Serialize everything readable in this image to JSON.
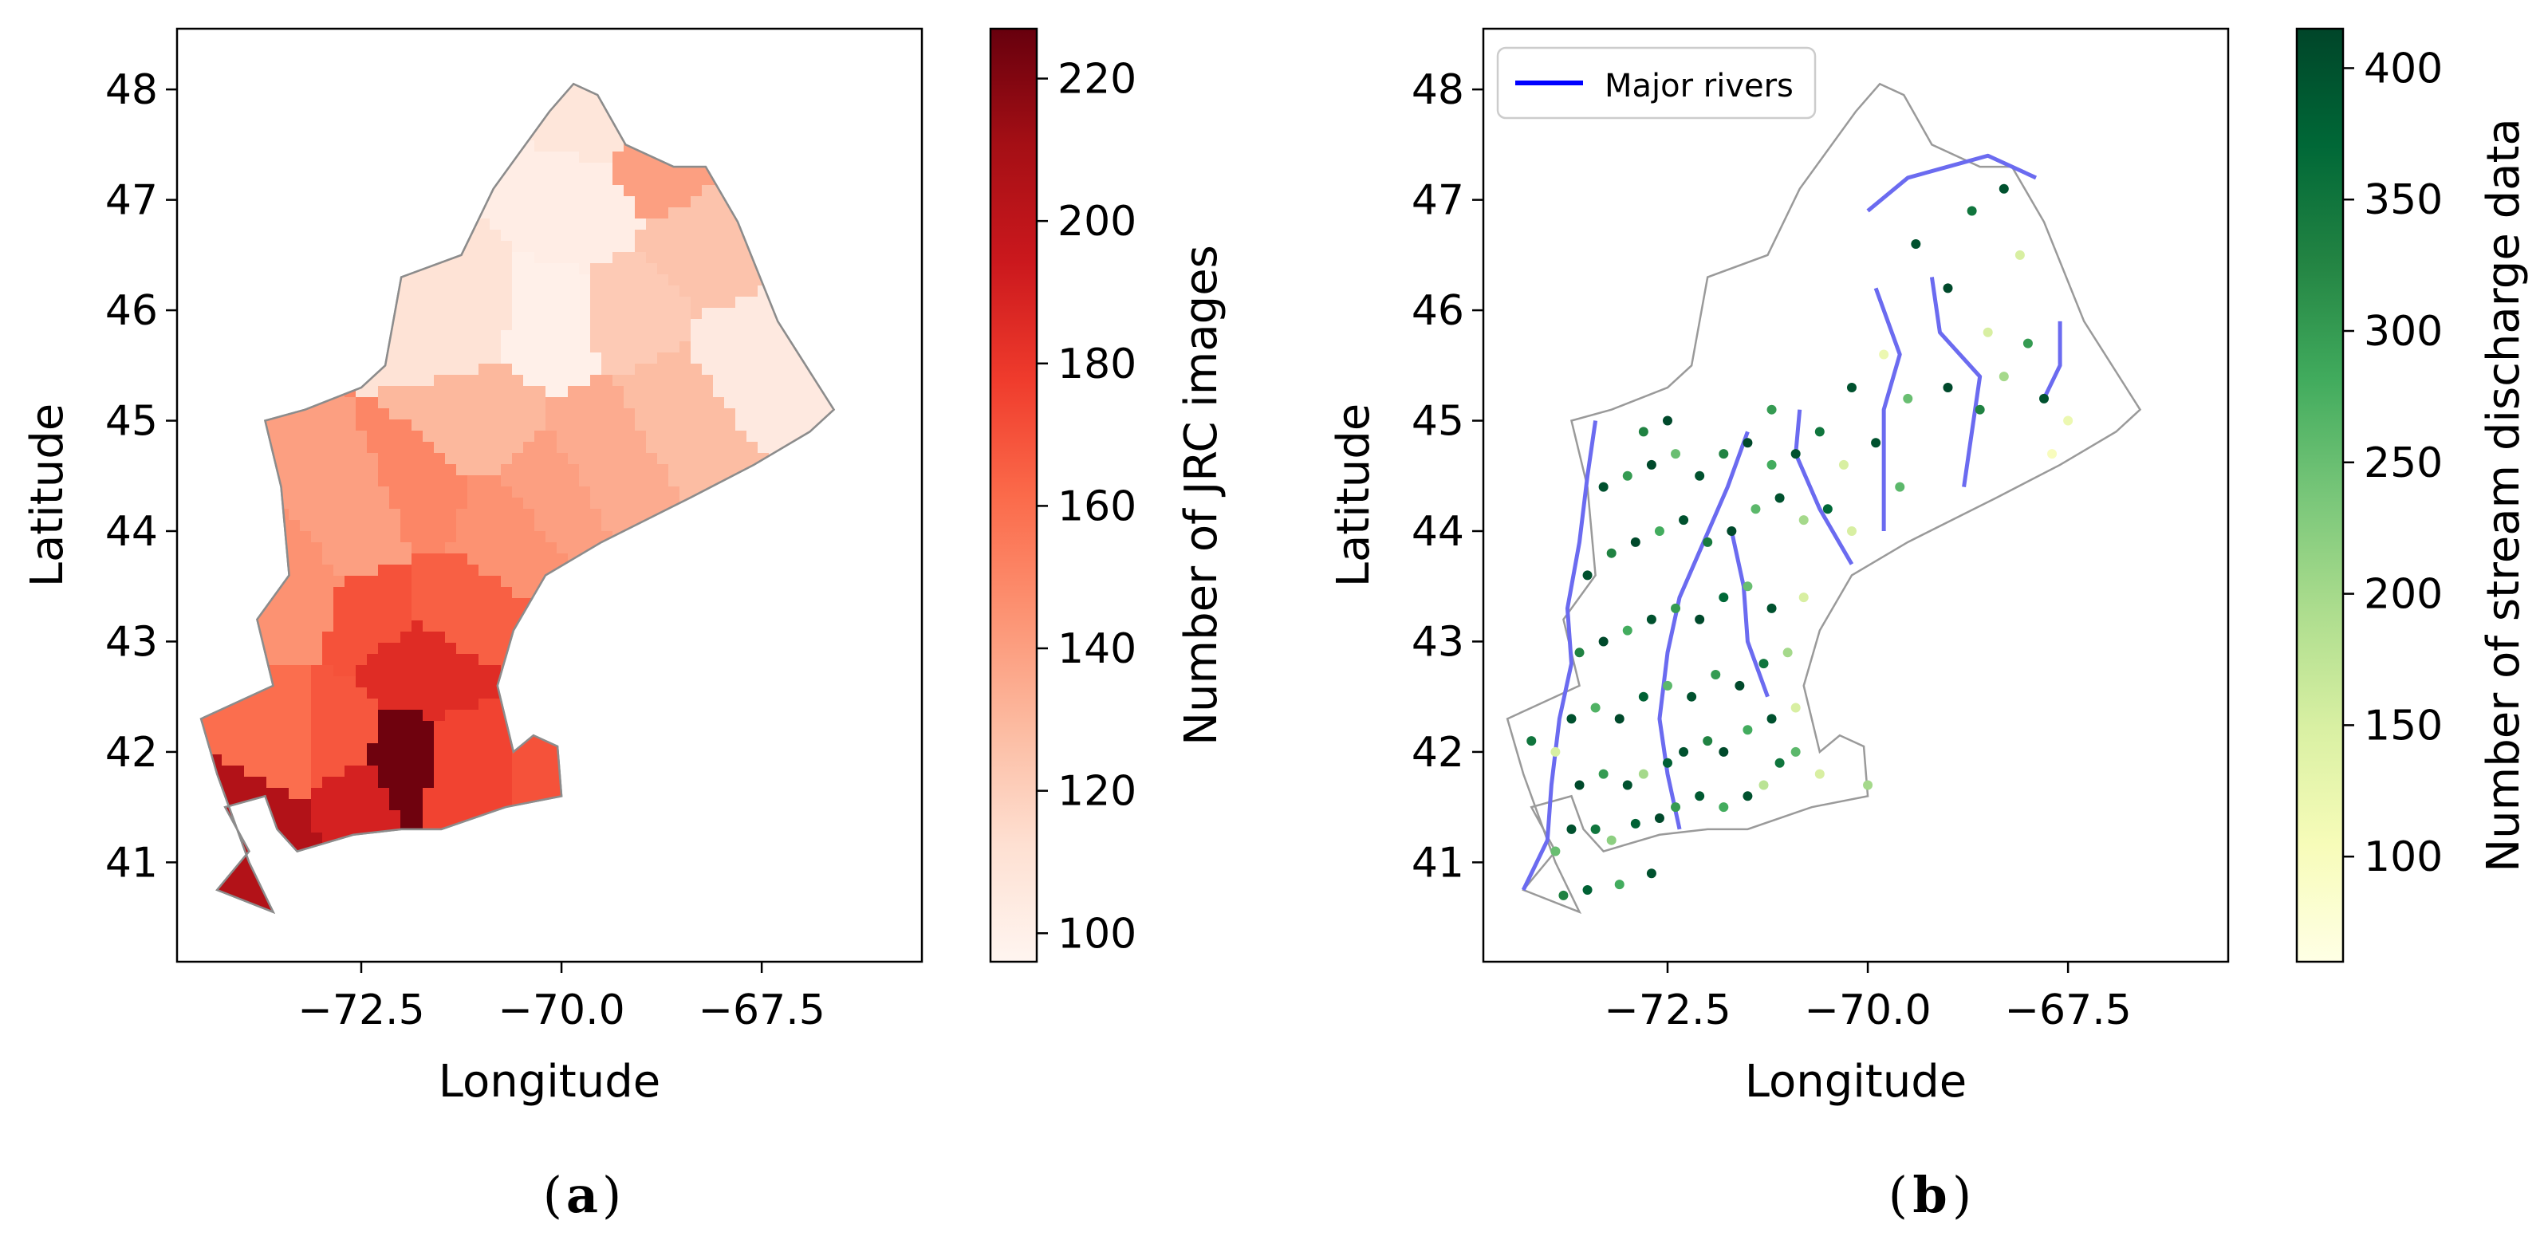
{
  "figure": {
    "panels": [
      {
        "id": "a",
        "caption_letter": "a",
        "type": "choropleth",
        "xlabel": "Longitude",
        "ylabel": "Latitude",
        "x_ticks": [
          "−72.5",
          "−70.0",
          "−67.5"
        ],
        "x_tick_values": [
          -72.5,
          -70.0,
          -67.5
        ],
        "y_ticks": [
          "41",
          "42",
          "43",
          "44",
          "45",
          "46",
          "47",
          "48"
        ],
        "y_tick_values": [
          41,
          42,
          43,
          44,
          45,
          46,
          47,
          48
        ],
        "xlim": [
          -74.8,
          -65.5
        ],
        "ylim": [
          40.1,
          48.55
        ],
        "colorbar": {
          "label": "Number of JRC images",
          "cmap": "Reds",
          "range": [
            96,
            227
          ],
          "ticks": [
            "100",
            "120",
            "140",
            "160",
            "180",
            "200",
            "220"
          ],
          "tick_values": [
            100,
            120,
            140,
            160,
            180,
            200,
            220
          ],
          "colors": [
            "#fff5f0",
            "#fee0d2",
            "#fcbba1",
            "#fc9272",
            "#fb6a4a",
            "#ef3b2c",
            "#cb181d",
            "#a50f15",
            "#67000d"
          ]
        }
      },
      {
        "id": "b",
        "caption_letter": "b",
        "type": "point_map",
        "xlabel": "Longitude",
        "ylabel": "Latitude",
        "x_ticks": [
          "−72.5",
          "−70.0",
          "−67.5"
        ],
        "x_tick_values": [
          -72.5,
          -70.0,
          -67.5
        ],
        "y_ticks": [
          "41",
          "42",
          "43",
          "44",
          "45",
          "46",
          "47",
          "48"
        ],
        "y_tick_values": [
          41,
          42,
          43,
          44,
          45,
          46,
          47,
          48
        ],
        "xlim": [
          -74.8,
          -65.5
        ],
        "ylim": [
          40.1,
          48.55
        ],
        "legend": {
          "label": "Major rivers",
          "color": "#0000ff",
          "placement": "top-left"
        },
        "colorbar": {
          "label": "Number of stream discharge data",
          "cmap": "YlGn",
          "range": [
            60,
            415
          ],
          "ticks": [
            "100",
            "150",
            "200",
            "250",
            "300",
            "350",
            "400"
          ],
          "tick_values": [
            100,
            150,
            200,
            250,
            300,
            350,
            400
          ],
          "colors": [
            "#ffffe5",
            "#f7fcb9",
            "#d9f0a3",
            "#addd8e",
            "#78c679",
            "#41ab5d",
            "#238443",
            "#006837",
            "#004529"
          ]
        }
      }
    ]
  },
  "chart_data": {
    "type": "map",
    "region_outline": [
      [
        -73.6,
        40.55
      ],
      [
        -74.3,
        40.75
      ],
      [
        -73.9,
        41.1
      ],
      [
        -74.2,
        41.5
      ],
      [
        -73.7,
        41.6
      ],
      [
        -73.55,
        41.3
      ],
      [
        -73.3,
        41.1
      ],
      [
        -72.6,
        41.25
      ],
      [
        -72.0,
        41.3
      ],
      [
        -71.5,
        41.3
      ],
      [
        -70.7,
        41.5
      ],
      [
        -70.0,
        41.6
      ],
      [
        -70.05,
        42.05
      ],
      [
        -70.35,
        42.15
      ],
      [
        -70.6,
        42.0
      ],
      [
        -70.8,
        42.6
      ],
      [
        -70.6,
        43.1
      ],
      [
        -70.2,
        43.6
      ],
      [
        -69.5,
        43.9
      ],
      [
        -68.4,
        44.3
      ],
      [
        -67.6,
        44.6
      ],
      [
        -66.9,
        44.9
      ],
      [
        -66.6,
        45.1
      ],
      [
        -67.3,
        45.9
      ],
      [
        -67.8,
        46.8
      ],
      [
        -68.2,
        47.3
      ],
      [
        -68.6,
        47.3
      ],
      [
        -69.2,
        47.5
      ],
      [
        -69.55,
        47.95
      ],
      [
        -69.85,
        48.05
      ],
      [
        -70.15,
        47.8
      ],
      [
        -70.85,
        47.1
      ],
      [
        -71.25,
        46.5
      ],
      [
        -72.0,
        46.3
      ],
      [
        -72.2,
        45.5
      ],
      [
        -72.5,
        45.3
      ],
      [
        -73.2,
        45.1
      ],
      [
        -73.7,
        45.0
      ],
      [
        -73.5,
        44.4
      ],
      [
        -73.4,
        43.6
      ],
      [
        -73.8,
        43.2
      ],
      [
        -73.6,
        42.6
      ],
      [
        -74.5,
        42.3
      ],
      [
        -74.3,
        41.8
      ],
      [
        -73.9,
        41.0
      ]
    ],
    "sub_basin_colors_a": [
      {
        "center": [
          -73.9,
          41.4
        ],
        "value": 205
      },
      {
        "center": [
          -72.1,
          41.9
        ],
        "value": 225
      },
      {
        "center": [
          -72.6,
          41.7
        ],
        "value": 190
      },
      {
        "center": [
          -71.3,
          41.8
        ],
        "value": 175
      },
      {
        "center": [
          -70.2,
          41.8
        ],
        "value": 170
      },
      {
        "center": [
          -72.9,
          42.1
        ],
        "value": 168
      },
      {
        "center": [
          -73.4,
          42.1
        ],
        "value": 160
      },
      {
        "center": [
          -71.9,
          42.9
        ],
        "value": 185
      },
      {
        "center": [
          -72.3,
          43.3
        ],
        "value": 170
      },
      {
        "center": [
          -71.5,
          43.4
        ],
        "value": 165
      },
      {
        "center": [
          -73.5,
          43.5
        ],
        "value": 145
      },
      {
        "center": [
          -72.5,
          44.1
        ],
        "value": 140
      },
      {
        "center": [
          -71.8,
          44.3
        ],
        "value": 150
      },
      {
        "center": [
          -70.9,
          44.1
        ],
        "value": 145
      },
      {
        "center": [
          -70.3,
          44.5
        ],
        "value": 140
      },
      {
        "center": [
          -69.6,
          44.8
        ],
        "value": 135
      },
      {
        "center": [
          -71.0,
          45.0
        ],
        "value": 130
      },
      {
        "center": [
          -68.6,
          45.2
        ],
        "value": 128
      },
      {
        "center": [
          -67.8,
          45.6
        ],
        "value": 105
      },
      {
        "center": [
          -69.2,
          46.0
        ],
        "value": 122
      },
      {
        "center": [
          -70.2,
          45.9
        ],
        "value": 100
      },
      {
        "center": [
          -71.3,
          46.0
        ],
        "value": 110
      },
      {
        "center": [
          -68.3,
          46.6
        ],
        "value": 125
      },
      {
        "center": [
          -69.8,
          47.0
        ],
        "value": 102
      },
      {
        "center": [
          -68.9,
          47.4
        ],
        "value": 140
      },
      {
        "center": [
          -69.5,
          47.8
        ],
        "value": 108
      }
    ],
    "stations_b": [
      [
        -73.8,
        40.7,
        330
      ],
      [
        -73.5,
        40.75,
        380
      ],
      [
        -73.1,
        40.8,
        280
      ],
      [
        -72.7,
        40.9,
        400
      ],
      [
        -73.9,
        41.1,
        250
      ],
      [
        -73.7,
        41.3,
        400
      ],
      [
        -73.4,
        41.3,
        350
      ],
      [
        -73.2,
        41.2,
        220
      ],
      [
        -72.9,
        41.35,
        380
      ],
      [
        -72.6,
        41.4,
        410
      ],
      [
        -72.4,
        41.5,
        300
      ],
      [
        -72.1,
        41.6,
        390
      ],
      [
        -71.8,
        41.5,
        280
      ],
      [
        -71.5,
        41.6,
        400
      ],
      [
        -71.3,
        41.7,
        180
      ],
      [
        -71.1,
        41.9,
        350
      ],
      [
        -70.9,
        42.0,
        260
      ],
      [
        -70.6,
        41.8,
        150
      ],
      [
        -70.0,
        41.7,
        200
      ],
      [
        -73.6,
        41.7,
        410
      ],
      [
        -73.3,
        41.8,
        300
      ],
      [
        -73.0,
        41.7,
        400
      ],
      [
        -72.8,
        41.8,
        200
      ],
      [
        -72.5,
        41.9,
        380
      ],
      [
        -72.3,
        42.0,
        400
      ],
      [
        -72.0,
        42.1,
        330
      ],
      [
        -71.8,
        42.0,
        410
      ],
      [
        -71.5,
        42.2,
        280
      ],
      [
        -71.2,
        42.3,
        400
      ],
      [
        -70.9,
        42.4,
        150
      ],
      [
        -74.2,
        42.1,
        350
      ],
      [
        -73.9,
        42.0,
        150
      ],
      [
        -73.7,
        42.3,
        400
      ],
      [
        -73.4,
        42.4,
        270
      ],
      [
        -73.1,
        42.3,
        410
      ],
      [
        -72.8,
        42.5,
        380
      ],
      [
        -72.5,
        42.6,
        260
      ],
      [
        -72.2,
        42.5,
        400
      ],
      [
        -71.9,
        42.7,
        300
      ],
      [
        -71.6,
        42.6,
        410
      ],
      [
        -71.3,
        42.8,
        350
      ],
      [
        -71.0,
        42.9,
        200
      ],
      [
        -73.6,
        42.9,
        330
      ],
      [
        -73.3,
        43.0,
        410
      ],
      [
        -73.0,
        43.1,
        280
      ],
      [
        -72.7,
        43.2,
        400
      ],
      [
        -72.4,
        43.3,
        300
      ],
      [
        -72.1,
        43.2,
        410
      ],
      [
        -71.8,
        43.4,
        370
      ],
      [
        -71.5,
        43.5,
        250
      ],
      [
        -71.2,
        43.3,
        400
      ],
      [
        -70.8,
        43.4,
        150
      ],
      [
        -73.5,
        43.6,
        400
      ],
      [
        -73.2,
        43.8,
        330
      ],
      [
        -72.9,
        43.9,
        410
      ],
      [
        -72.6,
        44.0,
        280
      ],
      [
        -72.3,
        44.1,
        400
      ],
      [
        -72.0,
        43.9,
        340
      ],
      [
        -71.7,
        44.0,
        410
      ],
      [
        -71.4,
        44.2,
        260
      ],
      [
        -71.1,
        44.3,
        400
      ],
      [
        -70.8,
        44.1,
        200
      ],
      [
        -70.5,
        44.2,
        370
      ],
      [
        -70.2,
        44.0,
        150
      ],
      [
        -73.3,
        44.4,
        400
      ],
      [
        -73.0,
        44.5,
        300
      ],
      [
        -72.7,
        44.6,
        410
      ],
      [
        -72.4,
        44.7,
        250
      ],
      [
        -72.1,
        44.5,
        400
      ],
      [
        -71.8,
        44.7,
        330
      ],
      [
        -71.5,
        44.8,
        410
      ],
      [
        -71.2,
        44.6,
        280
      ],
      [
        -70.9,
        44.7,
        400
      ],
      [
        -70.6,
        44.9,
        350
      ],
      [
        -70.3,
        44.6,
        150
      ],
      [
        -69.9,
        44.8,
        400
      ],
      [
        -69.6,
        44.4,
        260
      ],
      [
        -72.8,
        44.9,
        330
      ],
      [
        -72.5,
        45.0,
        410
      ],
      [
        -71.2,
        45.1,
        300
      ],
      [
        -70.2,
        45.3,
        400
      ],
      [
        -69.5,
        45.2,
        250
      ],
      [
        -69.0,
        45.3,
        410
      ],
      [
        -68.6,
        45.1,
        330
      ],
      [
        -68.3,
        45.4,
        200
      ],
      [
        -67.8,
        45.2,
        400
      ],
      [
        -67.5,
        45.0,
        120
      ],
      [
        -68.0,
        45.7,
        300
      ],
      [
        -68.5,
        45.8,
        150
      ],
      [
        -69.0,
        46.2,
        410
      ],
      [
        -69.4,
        46.6,
        400
      ],
      [
        -68.7,
        46.9,
        350
      ],
      [
        -68.3,
        47.1,
        400
      ],
      [
        -68.1,
        46.5,
        150
      ],
      [
        -69.8,
        45.6,
        120
      ],
      [
        -67.7,
        44.7,
        100
      ]
    ],
    "rivers_b": [
      [
        [
          -74.3,
          40.75
        ],
        [
          -74.0,
          41.2
        ],
        [
          -73.95,
          41.7
        ],
        [
          -73.85,
          42.3
        ],
        [
          -73.7,
          42.8
        ],
        [
          -73.75,
          43.3
        ],
        [
          -73.6,
          43.9
        ],
        [
          -73.5,
          44.5
        ],
        [
          -73.4,
          45.0
        ]
      ],
      [
        [
          -72.35,
          41.3
        ],
        [
          -72.5,
          41.8
        ],
        [
          -72.6,
          42.3
        ],
        [
          -72.5,
          42.9
        ],
        [
          -72.35,
          43.4
        ],
        [
          -72.05,
          43.9
        ],
        [
          -71.75,
          44.4
        ],
        [
          -71.5,
          44.9
        ]
      ],
      [
        [
          -71.25,
          42.5
        ],
        [
          -71.5,
          43.0
        ],
        [
          -71.55,
          43.5
        ],
        [
          -71.7,
          44.0
        ]
      ],
      [
        [
          -70.2,
          43.7
        ],
        [
          -70.6,
          44.2
        ],
        [
          -70.9,
          44.7
        ],
        [
          -70.85,
          45.1
        ]
      ],
      [
        [
          -69.8,
          44.0
        ],
        [
          -69.8,
          44.6
        ],
        [
          -69.8,
          45.1
        ],
        [
          -69.6,
          45.6
        ],
        [
          -69.9,
          46.2
        ]
      ],
      [
        [
          -68.8,
          44.4
        ],
        [
          -68.7,
          44.9
        ],
        [
          -68.6,
          45.4
        ],
        [
          -69.1,
          45.8
        ],
        [
          -69.2,
          46.3
        ]
      ],
      [
        [
          -70.0,
          46.9
        ],
        [
          -69.5,
          47.2
        ],
        [
          -69.0,
          47.3
        ],
        [
          -68.5,
          47.4
        ],
        [
          -67.9,
          47.2
        ]
      ],
      [
        [
          -67.8,
          45.2
        ],
        [
          -67.6,
          45.5
        ],
        [
          -67.6,
          45.9
        ]
      ]
    ]
  }
}
